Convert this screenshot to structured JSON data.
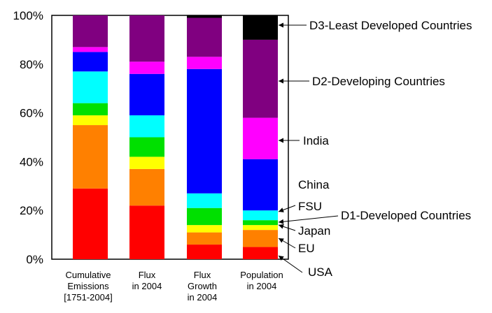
{
  "chart_data": {
    "type": "bar",
    "stacked": true,
    "percent": true,
    "ylim": [
      0,
      100
    ],
    "y_ticks": [
      "0%",
      "20%",
      "40%",
      "60%",
      "80%",
      "100%"
    ],
    "categories": [
      [
        "Cumulative",
        "Emissions",
        "[1751-2004]"
      ],
      [
        "Flux",
        "in 2004"
      ],
      [
        "Flux",
        "Growth",
        "in 2004"
      ],
      [
        "Population",
        "in 2004"
      ]
    ],
    "series": [
      {
        "key": "usa",
        "color": "#ff0000",
        "values": [
          29,
          22,
          6,
          5
        ]
      },
      {
        "key": "eu",
        "color": "#ff8000",
        "values": [
          26,
          15,
          5,
          7
        ]
      },
      {
        "key": "japan",
        "color": "#ffff00",
        "values": [
          4,
          5,
          3,
          2
        ]
      },
      {
        "key": "d1",
        "color": "#00e000",
        "values": [
          5,
          8,
          7,
          2
        ]
      },
      {
        "key": "fsu",
        "color": "#00ffff",
        "values": [
          13,
          9,
          6,
          4
        ]
      },
      {
        "key": "china",
        "color": "#0000ff",
        "values": [
          8,
          17,
          51,
          21
        ]
      },
      {
        "key": "india",
        "color": "#ff00ff",
        "values": [
          2,
          5,
          5,
          17
        ]
      },
      {
        "key": "d2",
        "color": "#800080",
        "values": [
          13,
          19,
          16,
          32
        ]
      },
      {
        "key": "d3",
        "color": "#000000",
        "values": [
          0,
          0,
          1,
          10
        ]
      }
    ],
    "annotations": [
      "D3-Least Developed Countries",
      "D2-Developing Countries",
      "India",
      "China",
      "FSU",
      "D1-Developed Countries",
      "Japan",
      "EU",
      "USA"
    ]
  }
}
